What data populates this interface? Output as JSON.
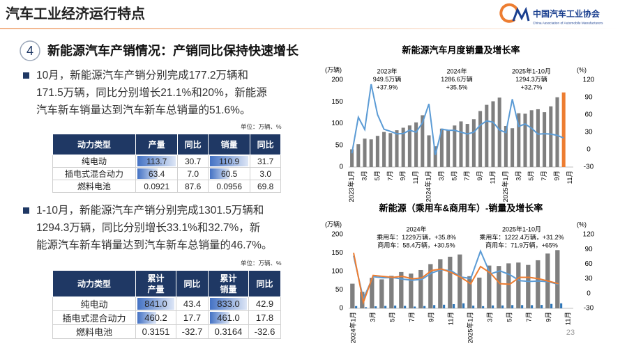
{
  "header": {
    "title": "汽车工业经济运行特点",
    "logo_cn": "中国汽车工业协会",
    "logo_en": "China Association of Automobile Manufacturers"
  },
  "section": {
    "number": "4",
    "headline": "新能源汽车产销情况：产销同比保持快速增长"
  },
  "bullets": [
    {
      "lines": [
        "10月，新能源汽车产销分别完成177.2万辆和",
        "171.5万辆，同比分别增长21.1%和20%，新能源",
        "汽车新车销量达到汽车新车总销量的51.6%。"
      ]
    },
    {
      "lines": [
        "1-10月，新能源汽车产销分别完成1301.5万辆和",
        "1294.3万辆，同比分别增长33.1%和32.7%，新",
        "能源汽车新车销量达到汽车新车总销量的46.7%。"
      ]
    }
  ],
  "tables": [
    {
      "unit": "单位：万辆、%",
      "header": [
        "动力类型",
        "产量",
        "同比",
        "销量",
        "同比"
      ],
      "rows": [
        [
          "纯电动",
          "113.7",
          "30.7",
          "110.9",
          "31.7"
        ],
        [
          "插电式混合动力",
          "63.4",
          "7.0",
          "60.5",
          "3.0"
        ],
        [
          "燃料电池",
          "0.0921",
          "87.6",
          "0.0956",
          "69.8"
        ]
      ]
    },
    {
      "unit": "单位：万辆、%",
      "header": [
        "动力类型",
        "累计产量",
        "同比",
        "累计销量",
        "同比"
      ],
      "rows": [
        [
          "纯电动",
          "841.0",
          "43.4",
          "833.0",
          "42.9"
        ],
        [
          "插电式混合动力",
          "460.2",
          "17.7",
          "461.0",
          "17.8"
        ],
        [
          "燃料电池",
          "0.3151",
          "-32.7",
          "0.3164",
          "-32.6"
        ]
      ]
    }
  ],
  "page_number": "23",
  "chart_data": [
    {
      "type": "combo",
      "title": "新能源汽车月度销量及增长率",
      "y_label": "(万辆)",
      "y2_label": "(%)",
      "categories": [
        "2023年1月",
        null,
        "3月",
        null,
        "5月",
        null,
        "7月",
        null,
        "9月",
        null,
        "11月",
        null,
        "2024年1月",
        null,
        "3月",
        null,
        "5月",
        null,
        "7月",
        null,
        "9月",
        null,
        "11月",
        null,
        "2025年1月",
        null,
        "3月",
        null,
        "5月",
        null,
        "7月",
        null,
        "9月",
        null,
        "11月"
      ],
      "series": [
        {
          "kind": "bar",
          "color": "#7f7f7f",
          "last_color": "#ed7d31",
          "values": [
            40.8,
            52.5,
            65.3,
            63.6,
            71.7,
            80.6,
            78.0,
            84.6,
            90.4,
            95.6,
            102.6,
            119.1,
            72.9,
            47.7,
            88.3,
            85.0,
            95.5,
            104.9,
            99.1,
            110.0,
            128.7,
            143.0,
            151.2,
            159.6,
            94.4,
            89.2,
            123.7,
            122.6,
            130.7,
            132.9,
            126.2,
            139.5,
            160.4,
            171.5,
            null
          ]
        },
        {
          "kind": "line",
          "axis": "y2",
          "color": "#5b9bd5",
          "values": [
            -6.3,
            55.9,
            34.8,
            112.8,
            60.2,
            35.2,
            31.6,
            27.2,
            27.7,
            33.5,
            30.0,
            46.4,
            78.8,
            -9.2,
            35.3,
            33.5,
            33.3,
            30.1,
            27.0,
            30.0,
            42.3,
            49.6,
            47.4,
            34.0,
            29.4,
            87.1,
            40.1,
            44.2,
            36.9,
            26.7,
            27.4,
            26.8,
            24.6,
            20.0,
            null
          ]
        }
      ],
      "ylim": [
        0,
        200
      ],
      "yticks": [
        0,
        50,
        100,
        150,
        200
      ],
      "y2lim": [
        -30,
        120
      ],
      "y2ticks": [
        -30,
        0,
        30,
        60,
        90,
        120
      ],
      "annotations": [
        {
          "lines": [
            "2023年",
            "949.5万辆",
            "+37.9%"
          ]
        },
        {
          "lines": [
            "2024年",
            "1286.6万辆",
            "+35.5%"
          ]
        },
        {
          "lines": [
            "2025年1-10月",
            "1294.3万辆",
            "+32.7%"
          ]
        }
      ]
    },
    {
      "type": "combo",
      "title": "新能源（乘用车&商用车）-销量及增长率",
      "y_label": "(万辆)",
      "y2_label": "(%)",
      "categories": [
        "2024年1月",
        null,
        "3月",
        null,
        "5月",
        null,
        "7月",
        null,
        "9月",
        null,
        "11月",
        null,
        "2025年1月",
        null,
        "3月",
        null,
        "5月",
        null,
        "7月",
        null,
        "9月",
        null,
        "11月"
      ],
      "series": [
        {
          "kind": "bar",
          "color": "#7f7f7f",
          "values": [
            66.8,
            44.7,
            82.8,
            78.5,
            88.1,
            98.3,
            94.3,
            103.8,
            119.9,
            133.2,
            139.9,
            146.0,
            87.2,
            83.3,
            115.9,
            114.8,
            121.9,
            124.1,
            117.6,
            130.3,
            148.5,
            157.9,
            null
          ]
        },
        {
          "kind": "bar",
          "color": "#2e75b6",
          "values": [
            6.1,
            3.0,
            5.5,
            6.5,
            7.4,
            6.6,
            4.8,
            6.2,
            8.8,
            9.8,
            11.3,
            13.6,
            7.2,
            5.9,
            7.8,
            7.8,
            8.8,
            8.8,
            8.6,
            9.2,
            11.9,
            13.6,
            null
          ]
        },
        {
          "kind": "line",
          "axis": "y2",
          "color": "#5b9bd5",
          "values": [
            76.9,
            -10.6,
            34.3,
            32.3,
            32.6,
            29.5,
            27.2,
            29.0,
            41.9,
            48.6,
            46.3,
            33.7,
            30.6,
            86.4,
            40.0,
            46.2,
            38.4,
            26.3,
            24.7,
            25.5,
            23.9,
            18.6,
            null
          ]
        },
        {
          "kind": "line",
          "axis": "y2",
          "color": "#ed7d31",
          "values": [
            83.0,
            -18.0,
            37.0,
            35.0,
            33.0,
            35.0,
            30.0,
            32.0,
            47.0,
            50.0,
            43.0,
            33.0,
            20.0,
            55.0,
            42.0,
            20.0,
            19.0,
            33.0,
            33.0,
            30.0,
            25.0,
            20.0,
            null
          ]
        }
      ],
      "ylim": [
        0,
        200
      ],
      "yticks": [
        0,
        50,
        100,
        150,
        200
      ],
      "y2lim": [
        -30,
        120
      ],
      "y2ticks": [
        -30,
        0,
        30,
        60,
        90,
        120
      ],
      "annotations": [
        {
          "lines": [
            "2024年",
            "乘用车：1229万辆，+35.8%",
            "商用车：58.4万辆，+30.5%"
          ]
        },
        {
          "lines": [
            "2025年1-10月",
            "乘用车：1222.4万辆，+31.2%",
            "商用车：71.9万辆，+65%"
          ]
        }
      ]
    }
  ]
}
